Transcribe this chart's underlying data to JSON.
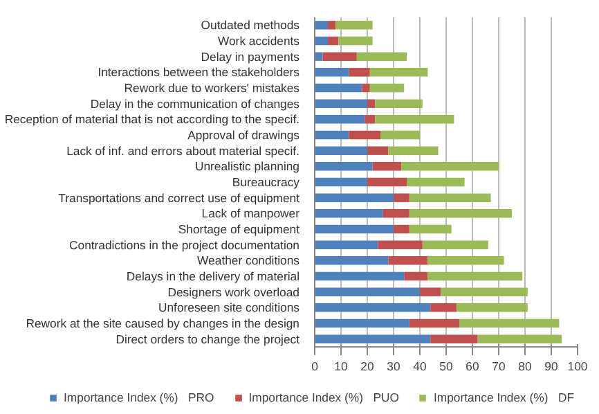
{
  "chart_data": {
    "type": "bar",
    "orientation": "horizontal",
    "stacked": true,
    "categories": [
      "Outdated methods",
      "Work accidents",
      "Delay in payments",
      "Interactions between the stakeholders",
      "Rework due to workers' mistakes",
      "Delay in the communication of changes",
      "Reception of material that is not according to the specif.",
      "Approval of drawings",
      "Lack of inf. and errors about material specif.",
      "Unrealistic planning",
      "Bureaucracy",
      "Transportations and correct use of equipment",
      "Lack of manpower",
      "Shortage of equipment",
      "Contradictions in the project documentation",
      "Weather conditions",
      "Delays in the delivery of material",
      "Designers work overload",
      "Unforeseen site conditions",
      "Rework at the site caused by changes in the design",
      "Direct orders to change the project"
    ],
    "series": [
      {
        "name": "Importance Index (%)   PRO",
        "color": "#4f81bd",
        "values": [
          5,
          5,
          3,
          13,
          18,
          20,
          19,
          13,
          20,
          22,
          20,
          30,
          26,
          30,
          24,
          28,
          34,
          40,
          44,
          36,
          44
        ]
      },
      {
        "name": "Importance Index (%)   PUO",
        "color": "#c0504d",
        "values": [
          3,
          4,
          13,
          8,
          3,
          3,
          4,
          12,
          8,
          11,
          15,
          6,
          10,
          6,
          17,
          15,
          9,
          8,
          10,
          19,
          18
        ]
      },
      {
        "name": "Importance Index (%)   DF",
        "color": "#9bbb59",
        "values": [
          14,
          13,
          19,
          22,
          13,
          18,
          30,
          15,
          19,
          37,
          22,
          31,
          39,
          16,
          25,
          29,
          36,
          33,
          27,
          38,
          32
        ]
      }
    ],
    "xlim": [
      0,
      100
    ],
    "xticks": [
      0,
      10,
      20,
      30,
      40,
      50,
      60,
      70,
      80,
      90,
      100
    ],
    "grid": "x",
    "legend": "bottom"
  }
}
